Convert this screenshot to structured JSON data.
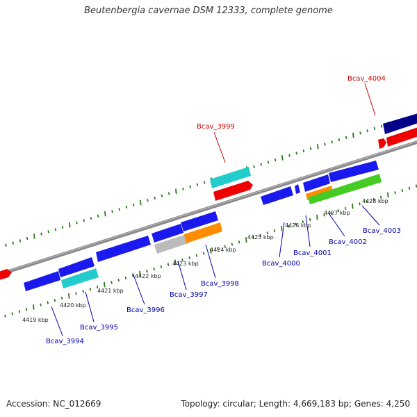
{
  "title": "Beutenbergia cavernae DSM 12333, complete genome",
  "footer": {
    "accession": "Accession: NC_012669",
    "summary": "Topology: circular; Length: 4,669,183 bp; Genes: 4,250"
  },
  "colors": {
    "backbone": "#888888",
    "tick": "#2a7a1a",
    "label_forward": "#cc0000",
    "label_reverse": "#0000aa",
    "cds": "#1a1aee",
    "rna": "#22cccc",
    "pseudo": "#bbbbbb",
    "orange": "#ff8c00",
    "green": "#44cc22",
    "dark": "#000088",
    "red": "#ee0000"
  },
  "scale": {
    "kbp_labels": [
      "4419 kbp",
      "4420 kbp",
      "4421 kbp",
      "4422 kbp",
      "4423 kbp",
      "4424 kbp",
      "4425 kbp",
      "4426 kbp",
      "4427 kbp",
      "4428 kbp"
    ]
  },
  "gene_labels": [
    {
      "name": "Bcav_3994",
      "strand": "reverse"
    },
    {
      "name": "Bcav_3995",
      "strand": "reverse"
    },
    {
      "name": "Bcav_3996",
      "strand": "reverse"
    },
    {
      "name": "Bcav_3997",
      "strand": "reverse"
    },
    {
      "name": "Bcav_3998",
      "strand": "reverse"
    },
    {
      "name": "Bcav_3999",
      "strand": "forward"
    },
    {
      "name": "Bcav_4000",
      "strand": "reverse"
    },
    {
      "name": "Bcav_4001",
      "strand": "reverse"
    },
    {
      "name": "Bcav_4002",
      "strand": "reverse"
    },
    {
      "name": "Bcav_4003",
      "strand": "reverse"
    },
    {
      "name": "Bcav_4004",
      "strand": "forward"
    }
  ]
}
